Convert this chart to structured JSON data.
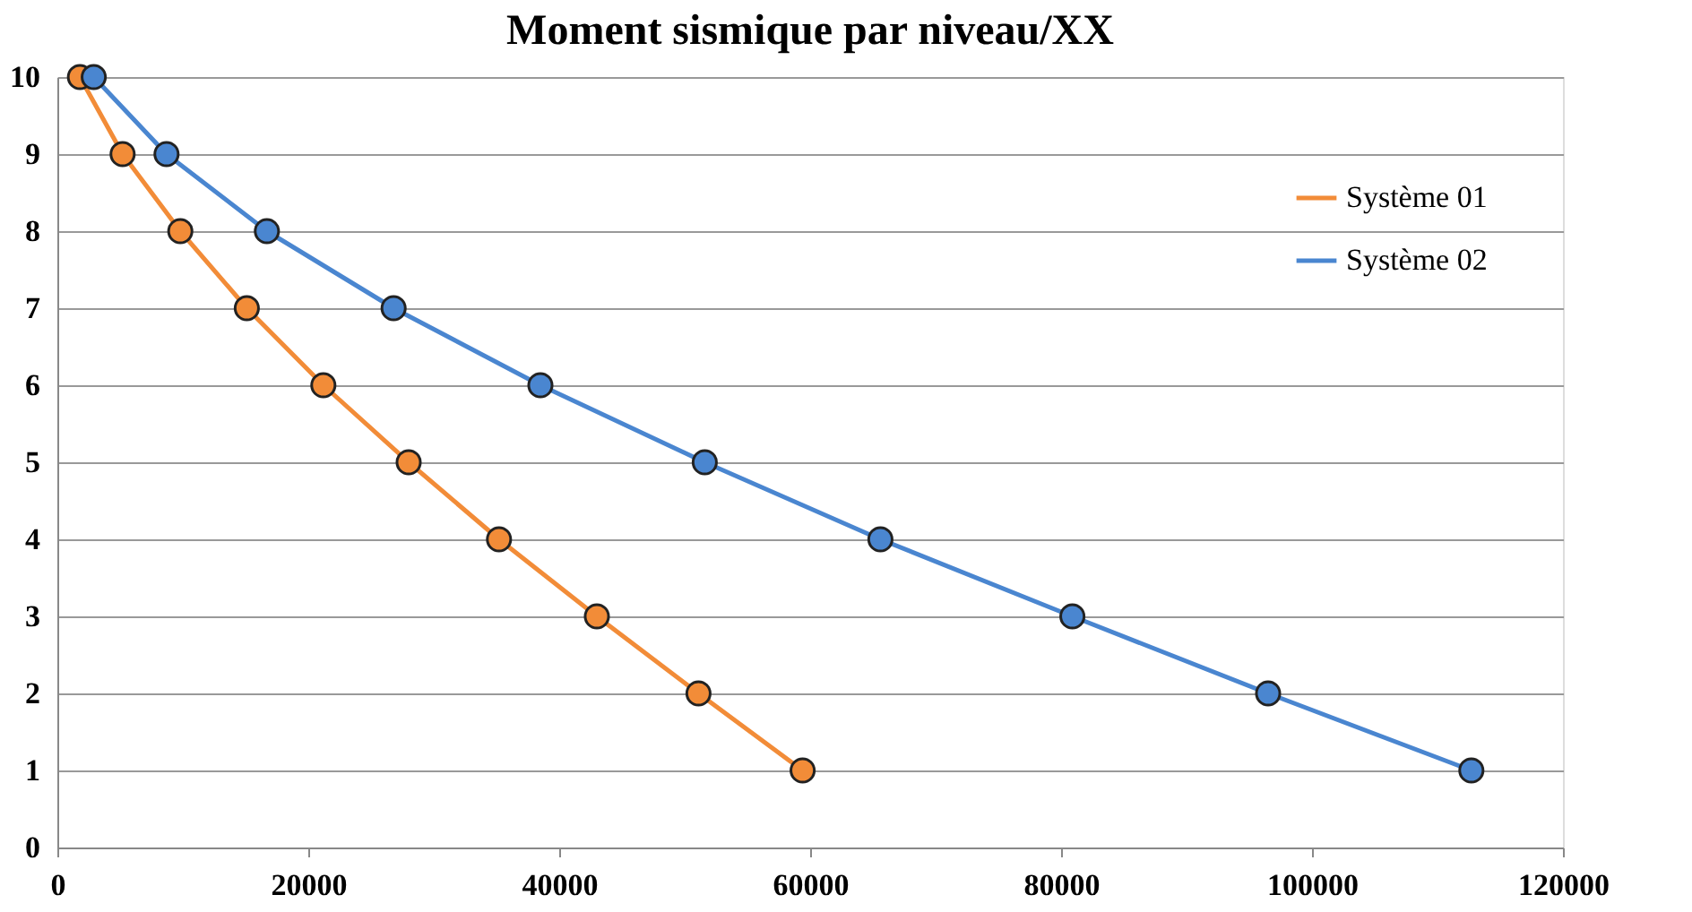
{
  "chart_data": {
    "type": "line",
    "title": "Moment sismique par niveau/XX",
    "series": [
      {
        "name": "Système 01",
        "color": "#f28c38",
        "x": [
          1800,
          5200,
          9800,
          15100,
          21200,
          28000,
          35200,
          43000,
          51100,
          59400
        ],
        "values": [
          10,
          9,
          8,
          7,
          6,
          5,
          4,
          3,
          2,
          1
        ]
      },
      {
        "name": "Système 02",
        "color": "#4a86d0",
        "x": [
          2900,
          8700,
          16700,
          26800,
          38500,
          51600,
          65600,
          80900,
          96500,
          112700
        ],
        "values": [
          10,
          9,
          8,
          7,
          6,
          5,
          4,
          3,
          2,
          1
        ]
      }
    ],
    "xlim": [
      0,
      120000
    ],
    "xticks": [
      0,
      20000,
      40000,
      60000,
      80000,
      100000,
      120000
    ],
    "ylim": [
      0,
      10
    ],
    "yticks": [
      0,
      1,
      2,
      3,
      4,
      5,
      6,
      7,
      8,
      9,
      10
    ],
    "grid": "y",
    "legend": "right",
    "marker": "circle",
    "line_style": "solid"
  }
}
